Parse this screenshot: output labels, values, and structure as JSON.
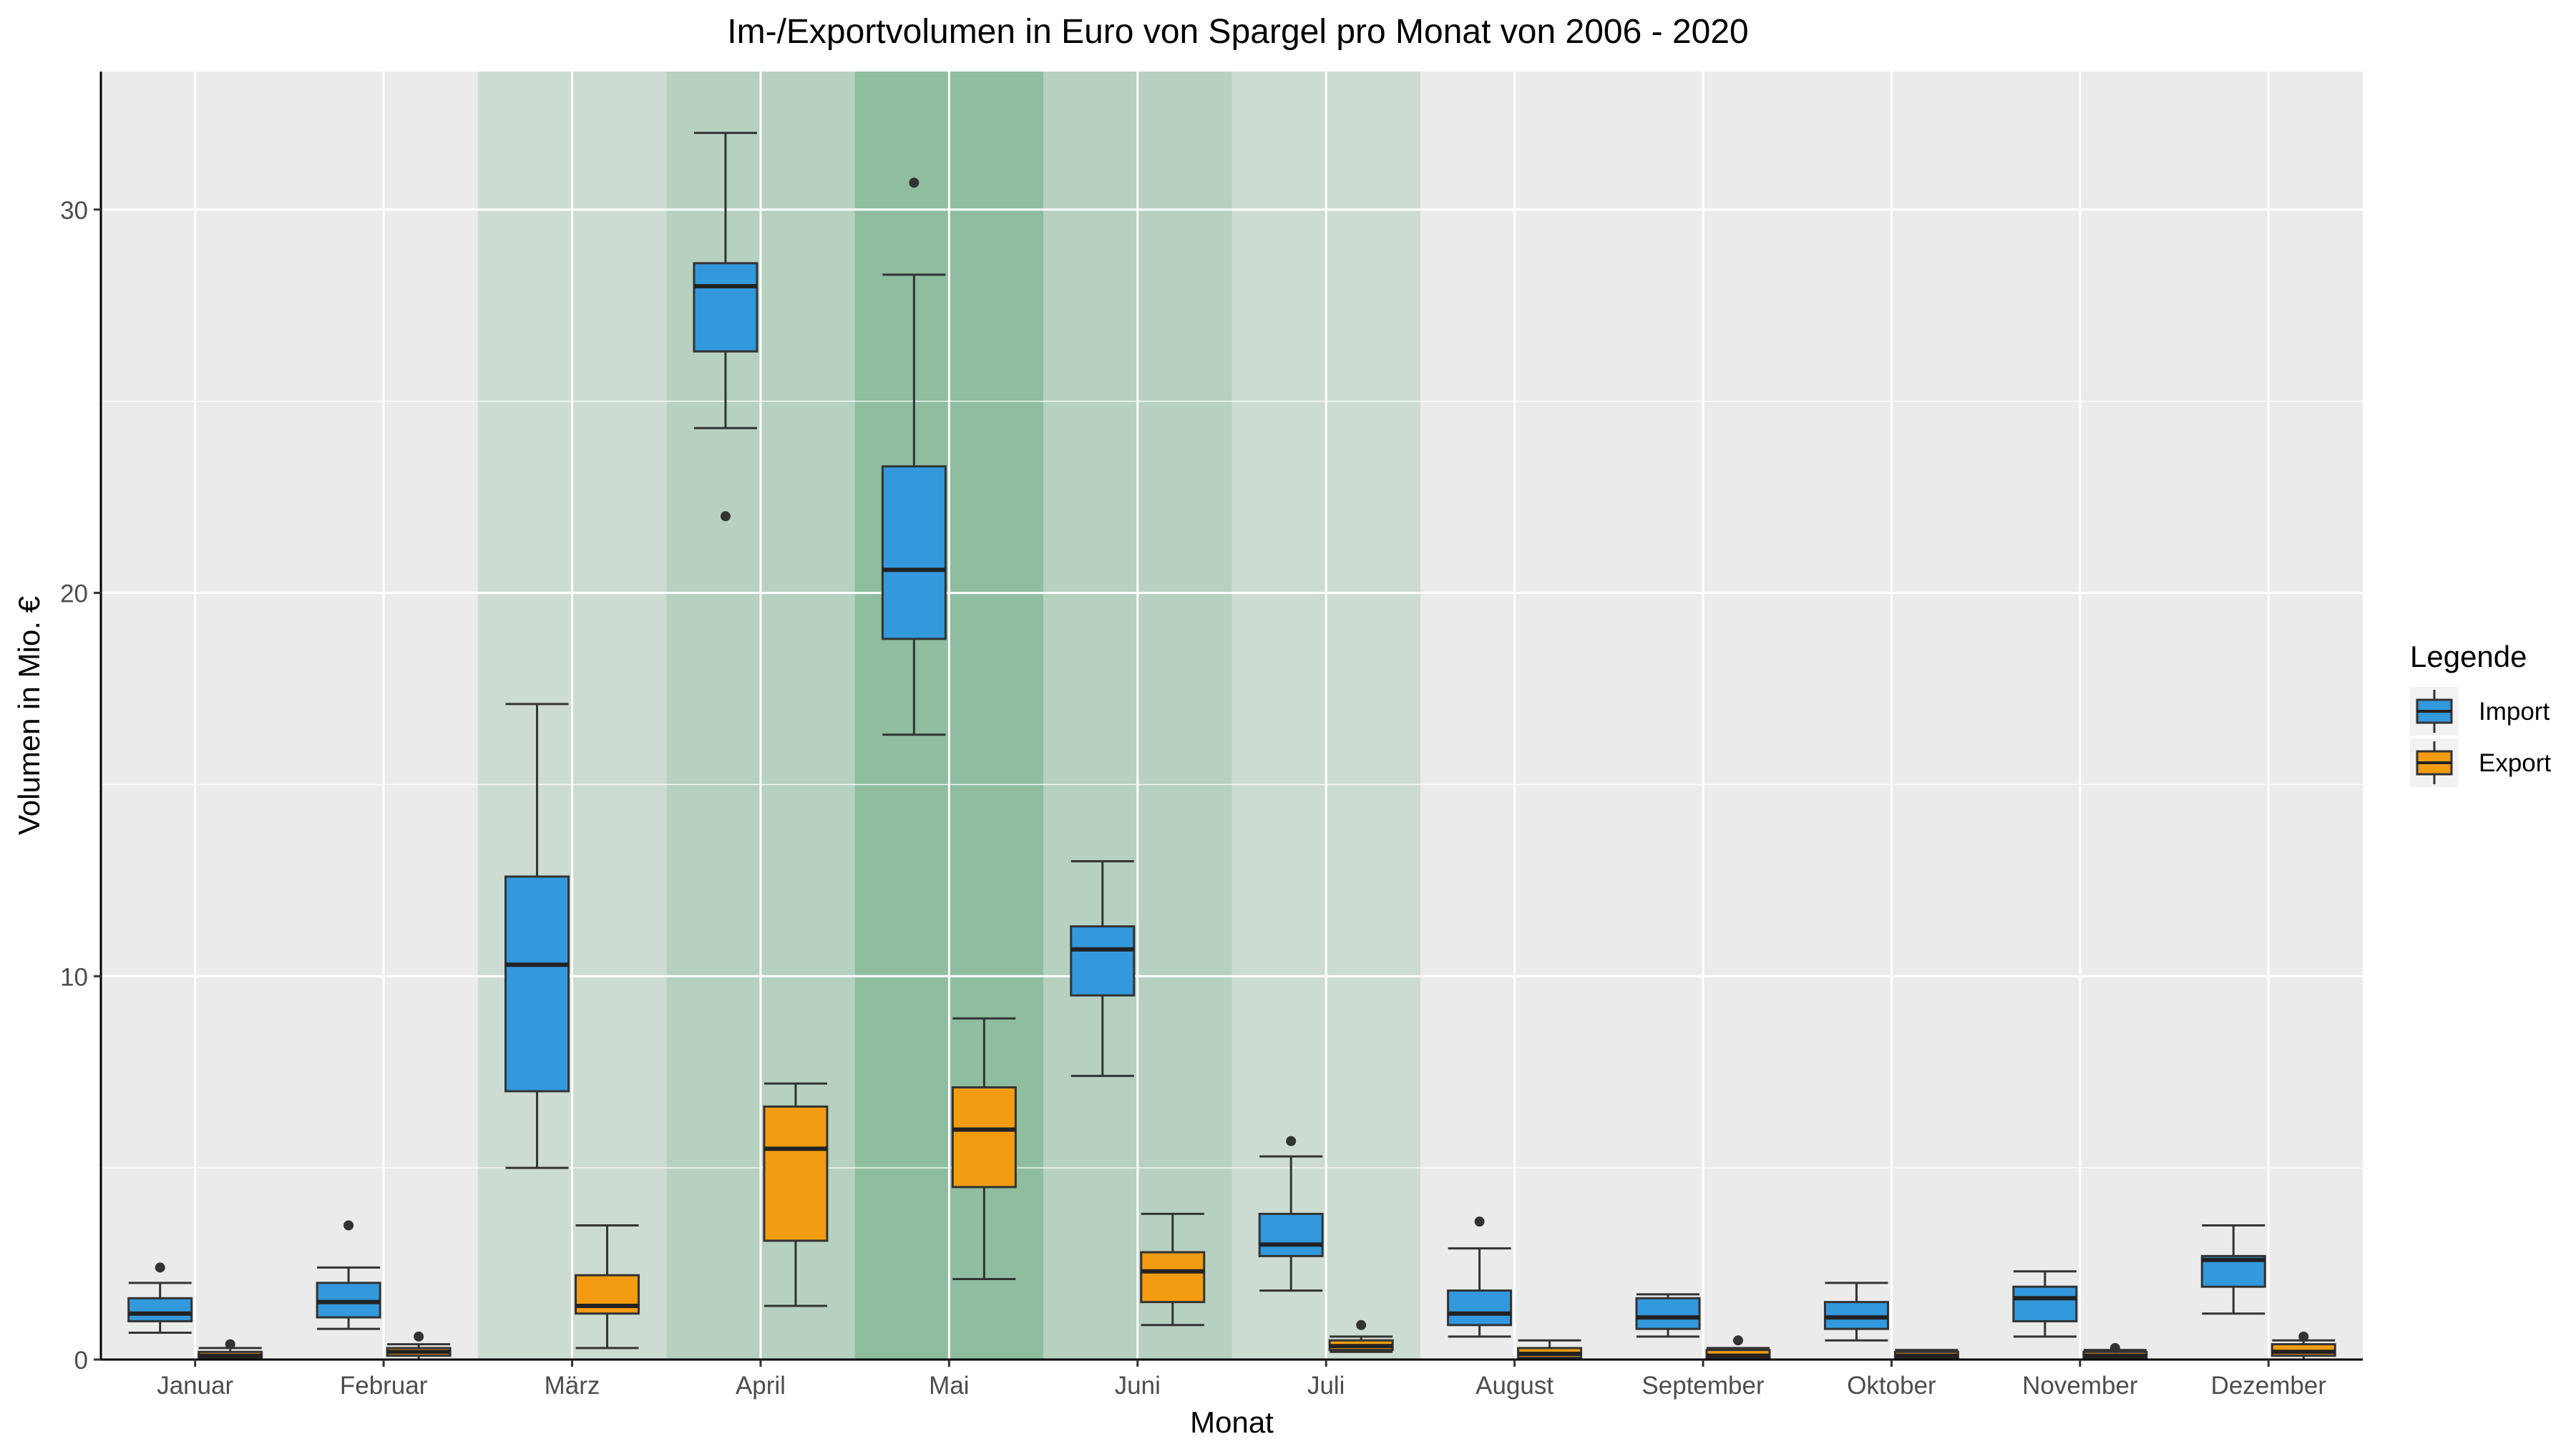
{
  "chart_data": {
    "type": "boxplot",
    "title": "Im-/Exportvolumen in Euro von Spargel pro Monat von 2006 - 2020",
    "xlabel": "Monat",
    "ylabel": "Volumen in Mio. €",
    "ylim": [
      0,
      33.6
    ],
    "yticks": [
      0,
      10,
      20,
      30
    ],
    "grid": true,
    "legend": {
      "title": "Legende",
      "position": "right",
      "entries": [
        "Import",
        "Export"
      ]
    },
    "categories": [
      "Januar",
      "Februar",
      "März",
      "April",
      "Mai",
      "Juni",
      "Juli",
      "August",
      "September",
      "Oktober",
      "November",
      "Dezember"
    ],
    "season_shading": [
      {
        "category": "März",
        "level": "low"
      },
      {
        "category": "April",
        "level": "medium"
      },
      {
        "category": "Mai",
        "level": "high"
      },
      {
        "category": "Juni",
        "level": "medium"
      },
      {
        "category": "Juli",
        "level": "low"
      }
    ],
    "series": [
      {
        "name": "Import",
        "color": "#3399dd",
        "boxes": [
          {
            "min": 0.7,
            "q1": 1.0,
            "median": 1.2,
            "q3": 1.6,
            "max": 2.0,
            "outliers": [
              2.4
            ]
          },
          {
            "min": 0.8,
            "q1": 1.1,
            "median": 1.5,
            "q3": 2.0,
            "max": 2.4,
            "outliers": [
              3.5
            ]
          },
          {
            "min": 5.0,
            "q1": 7.0,
            "median": 10.3,
            "q3": 12.6,
            "max": 17.1,
            "outliers": []
          },
          {
            "min": 24.3,
            "q1": 26.3,
            "median": 28.0,
            "q3": 28.6,
            "max": 32.0,
            "outliers": [
              22.0
            ]
          },
          {
            "min": 16.3,
            "q1": 18.8,
            "median": 20.6,
            "q3": 23.3,
            "max": 28.3,
            "outliers": [
              30.7
            ]
          },
          {
            "min": 7.4,
            "q1": 9.5,
            "median": 10.7,
            "q3": 11.3,
            "max": 13.0,
            "outliers": []
          },
          {
            "min": 1.8,
            "q1": 2.7,
            "median": 3.0,
            "q3": 3.8,
            "max": 5.3,
            "outliers": [
              5.7
            ]
          },
          {
            "min": 0.6,
            "q1": 0.9,
            "median": 1.2,
            "q3": 1.8,
            "max": 2.9,
            "outliers": [
              3.6
            ]
          },
          {
            "min": 0.6,
            "q1": 0.8,
            "median": 1.1,
            "q3": 1.6,
            "max": 1.7,
            "outliers": []
          },
          {
            "min": 0.5,
            "q1": 0.8,
            "median": 1.1,
            "q3": 1.5,
            "max": 2.0,
            "outliers": []
          },
          {
            "min": 0.6,
            "q1": 1.0,
            "median": 1.6,
            "q3": 1.9,
            "max": 2.3,
            "outliers": []
          },
          {
            "min": 1.2,
            "q1": 1.9,
            "median": 2.6,
            "q3": 2.7,
            "max": 3.5,
            "outliers": []
          }
        ]
      },
      {
        "name": "Export",
        "color": "#f39c12",
        "boxes": [
          {
            "min": 0.0,
            "q1": 0.05,
            "median": 0.1,
            "q3": 0.2,
            "max": 0.3,
            "outliers": [
              0.4
            ]
          },
          {
            "min": 0.0,
            "q1": 0.1,
            "median": 0.2,
            "q3": 0.3,
            "max": 0.4,
            "outliers": [
              0.6
            ]
          },
          {
            "min": 0.3,
            "q1": 1.2,
            "median": 1.4,
            "q3": 2.2,
            "max": 3.5,
            "outliers": []
          },
          {
            "min": 1.4,
            "q1": 3.1,
            "median": 5.5,
            "q3": 6.6,
            "max": 7.2,
            "outliers": []
          },
          {
            "min": 2.1,
            "q1": 4.5,
            "median": 6.0,
            "q3": 7.1,
            "max": 8.9,
            "outliers": []
          },
          {
            "min": 0.9,
            "q1": 1.5,
            "median": 2.3,
            "q3": 2.8,
            "max": 3.8,
            "outliers": []
          },
          {
            "min": 0.2,
            "q1": 0.25,
            "median": 0.35,
            "q3": 0.5,
            "max": 0.6,
            "outliers": [
              0.9
            ]
          },
          {
            "min": 0.0,
            "q1": 0.05,
            "median": 0.15,
            "q3": 0.3,
            "max": 0.5,
            "outliers": []
          },
          {
            "min": 0.0,
            "q1": 0.05,
            "median": 0.1,
            "q3": 0.25,
            "max": 0.3,
            "outliers": [
              0.5
            ]
          },
          {
            "min": 0.0,
            "q1": 0.05,
            "median": 0.1,
            "q3": 0.2,
            "max": 0.25,
            "outliers": []
          },
          {
            "min": 0.0,
            "q1": 0.05,
            "median": 0.1,
            "q3": 0.2,
            "max": 0.25,
            "outliers": [
              0.3
            ]
          },
          {
            "min": 0.0,
            "q1": 0.1,
            "median": 0.2,
            "q3": 0.4,
            "max": 0.5,
            "outliers": [
              0.6
            ]
          }
        ]
      }
    ]
  }
}
